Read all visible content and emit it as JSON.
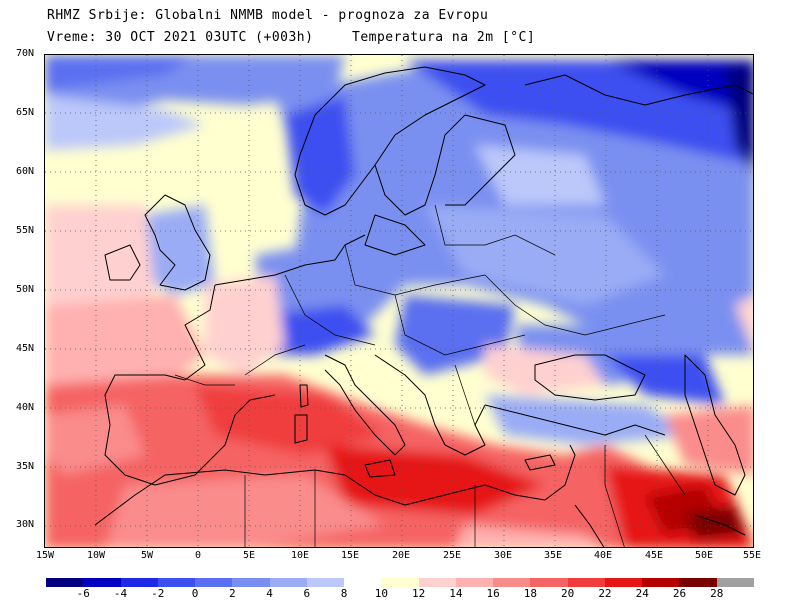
{
  "header": {
    "line1": "RHMZ Srbije: Globalni NMMB model - prognoza za Evropu",
    "line2_left": "Vreme: 30 OCT 2021 03UTC (+003h)",
    "line2_right": "Temperatura na 2m [°C]"
  },
  "map": {
    "lat_labels": [
      "70N",
      "65N",
      "60N",
      "55N",
      "50N",
      "45N",
      "40N",
      "35N",
      "30N"
    ],
    "lon_labels": [
      "15W",
      "10W",
      "5W",
      "0",
      "5E",
      "10E",
      "15E",
      "20E",
      "25E",
      "30E",
      "35E",
      "40E",
      "45E",
      "50E",
      "55E"
    ]
  },
  "legend": {
    "labels": [
      "-6",
      "-4",
      "-2",
      "0",
      "2",
      "4",
      "6",
      "8",
      "10",
      "12",
      "14",
      "16",
      "18",
      "20",
      "22",
      "24",
      "26",
      "28"
    ],
    "colors": [
      "#000080",
      "#0000c0",
      "#1e28e6",
      "#3c50f0",
      "#5a70f0",
      "#7a90f0",
      "#9aacf5",
      "#bcc8fa",
      "#ffffff",
      "#ffffd0",
      "#ffd0d0",
      "#ffb0b0",
      "#fa8c8c",
      "#f56464",
      "#f03c3c",
      "#e61414",
      "#b40000",
      "#780000",
      "#a0a0a0"
    ]
  }
}
